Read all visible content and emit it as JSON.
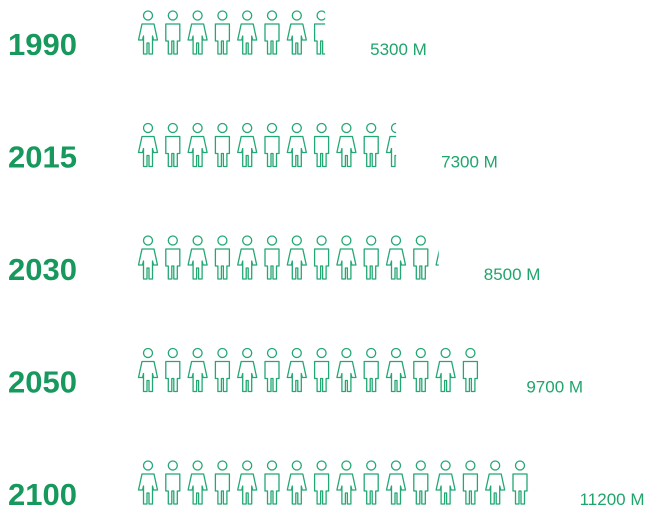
{
  "chart_data": {
    "type": "pictogram",
    "categories": [
      "1990",
      "2015",
      "2030",
      "2050",
      "2100"
    ],
    "values": [
      5300,
      7300,
      8500,
      9700,
      11200
    ],
    "value_labels": [
      "5300 M",
      "7300 M",
      "8500 M",
      "9700 M",
      "11200 M"
    ],
    "color": "#22a874"
  }
}
